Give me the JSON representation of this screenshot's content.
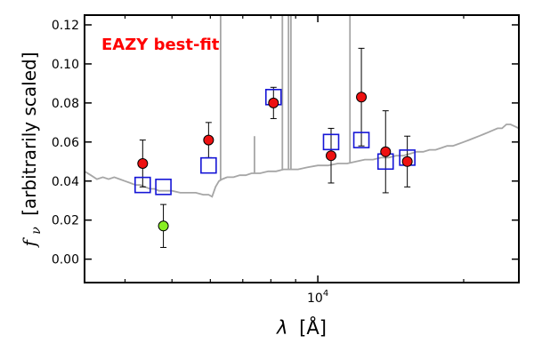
{
  "chart_data": {
    "type": "scatter",
    "annotation": "EAZY best-fit",
    "annotation_color": "#ff0000",
    "xlabel_symbol": "λ",
    "xlabel_unit": "[Å]",
    "ylabel_symbol": "f",
    "ylabel_subscript": "ν",
    "ylabel_text": "[arbitrarily scaled]",
    "x_scale": "log",
    "xlim": [
      3300,
      26000
    ],
    "ylim": [
      -0.012,
      0.125
    ],
    "y_ticks": [
      0.0,
      0.02,
      0.04,
      0.06,
      0.08,
      0.1,
      0.12
    ],
    "y_tick_labels": [
      "0.00",
      "0.02",
      "0.04",
      "0.06",
      "0.08",
      "0.10",
      "0.12"
    ],
    "x_major_tick": 10000,
    "x_major_tick_label_base": "10",
    "x_major_tick_label_exp": "4",
    "x_minor_ticks": [
      4000,
      5000,
      6000,
      7000,
      8000,
      9000,
      20000
    ],
    "grid": false,
    "colors": {
      "template": "#a6a6a6",
      "observed": "#ee1111",
      "observed_low": "#88ee22",
      "model": "#1515d6",
      "axes": "#000000"
    },
    "series": [
      {
        "kind": "observed",
        "points": [
          {
            "x": 4350,
            "y": 0.049,
            "yerr": 0.012,
            "flag": "normal"
          },
          {
            "x": 4800,
            "y": 0.017,
            "yerr": 0.011,
            "flag": "low"
          },
          {
            "x": 5950,
            "y": 0.061,
            "yerr": 0.009,
            "flag": "normal"
          },
          {
            "x": 8100,
            "y": 0.08,
            "yerr": 0.008,
            "flag": "normal"
          },
          {
            "x": 10650,
            "y": 0.053,
            "yerr": 0.014,
            "flag": "normal"
          },
          {
            "x": 12300,
            "y": 0.083,
            "yerr": 0.025,
            "flag": "normal"
          },
          {
            "x": 13800,
            "y": 0.055,
            "yerr": 0.021,
            "flag": "normal"
          },
          {
            "x": 15300,
            "y": 0.05,
            "yerr": 0.013,
            "flag": "normal"
          }
        ]
      },
      {
        "kind": "model",
        "points": [
          {
            "x": 4350,
            "y": 0.038
          },
          {
            "x": 4800,
            "y": 0.037
          },
          {
            "x": 5950,
            "y": 0.048
          },
          {
            "x": 8100,
            "y": 0.083
          },
          {
            "x": 10650,
            "y": 0.06
          },
          {
            "x": 12300,
            "y": 0.061
          },
          {
            "x": 13800,
            "y": 0.05
          },
          {
            "x": 15300,
            "y": 0.052
          }
        ]
      },
      {
        "kind": "template",
        "points": [
          [
            3300,
            0.045
          ],
          [
            3400,
            0.043
          ],
          [
            3500,
            0.041
          ],
          [
            3600,
            0.042
          ],
          [
            3700,
            0.041
          ],
          [
            3800,
            0.042
          ],
          [
            3900,
            0.041
          ],
          [
            4000,
            0.04
          ],
          [
            4100,
            0.039
          ],
          [
            4200,
            0.038
          ],
          [
            4300,
            0.038
          ],
          [
            4400,
            0.037
          ],
          [
            4500,
            0.036
          ],
          [
            4600,
            0.036
          ],
          [
            4700,
            0.035
          ],
          [
            4800,
            0.035
          ],
          [
            4900,
            0.035
          ],
          [
            5000,
            0.035
          ],
          [
            5200,
            0.034
          ],
          [
            5400,
            0.034
          ],
          [
            5600,
            0.034
          ],
          [
            5800,
            0.033
          ],
          [
            5950,
            0.033
          ],
          [
            6050,
            0.032
          ],
          [
            6150,
            0.037
          ],
          [
            6250,
            0.04
          ],
          [
            6350,
            0.041
          ],
          [
            6500,
            0.042
          ],
          [
            6700,
            0.042
          ],
          [
            6900,
            0.043
          ],
          [
            7100,
            0.043
          ],
          [
            7300,
            0.044
          ],
          [
            7600,
            0.044
          ],
          [
            7900,
            0.045
          ],
          [
            8200,
            0.045
          ],
          [
            8500,
            0.046
          ],
          [
            8800,
            0.046
          ],
          [
            9100,
            0.046
          ],
          [
            9500,
            0.047
          ],
          [
            10000,
            0.048
          ],
          [
            10500,
            0.048
          ],
          [
            11000,
            0.049
          ],
          [
            11500,
            0.049
          ],
          [
            12000,
            0.05
          ],
          [
            12500,
            0.051
          ],
          [
            13000,
            0.051
          ],
          [
            13500,
            0.052
          ],
          [
            14000,
            0.052
          ],
          [
            14500,
            0.053
          ],
          [
            15000,
            0.053
          ],
          [
            15500,
            0.054
          ],
          [
            16000,
            0.055
          ],
          [
            16500,
            0.055
          ],
          [
            17000,
            0.056
          ],
          [
            17500,
            0.056
          ],
          [
            18000,
            0.057
          ],
          [
            18500,
            0.058
          ],
          [
            19000,
            0.058
          ],
          [
            19500,
            0.059
          ],
          [
            20000,
            0.06
          ],
          [
            20500,
            0.061
          ],
          [
            21000,
            0.062
          ],
          [
            21500,
            0.063
          ],
          [
            22000,
            0.064
          ],
          [
            22500,
            0.065
          ],
          [
            23000,
            0.066
          ],
          [
            23500,
            0.067
          ],
          [
            24000,
            0.067
          ],
          [
            24500,
            0.069
          ],
          [
            25000,
            0.069
          ],
          [
            25500,
            0.068
          ],
          [
            26000,
            0.067
          ]
        ],
        "emission_lines": [
          {
            "x": 6300,
            "peak": 0.125
          },
          {
            "x": 7400,
            "peak": 0.063
          },
          {
            "x": 8450,
            "peak": 0.125
          },
          {
            "x": 8700,
            "peak": 0.125
          },
          {
            "x": 8800,
            "peak": 0.125
          },
          {
            "x": 11650,
            "peak": 0.125
          }
        ]
      }
    ]
  }
}
